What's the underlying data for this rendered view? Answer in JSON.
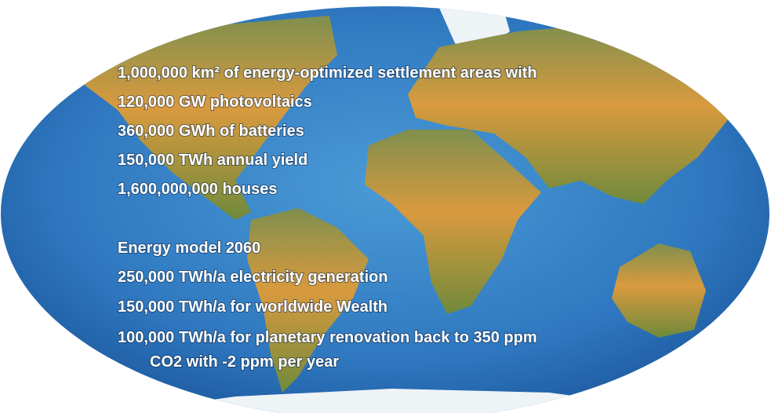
{
  "text_block": {
    "group1": [
      "1,000,000 km² of energy-optimized settlement areas with",
      "120,000 GW photovoltaics",
      "360,000 GWh of batteries",
      "150,000 TWh annual yield",
      "1,600,000,000 houses"
    ],
    "group2": [
      "Energy model 2060",
      "250,000 TWh/a electricity generation",
      "150,000 TWh/a for worldwide Wealth",
      "100,000 TWh/a for planetary renovation back to 350 ppm"
    ],
    "continuation": "CO2 with -2 ppm per year"
  }
}
